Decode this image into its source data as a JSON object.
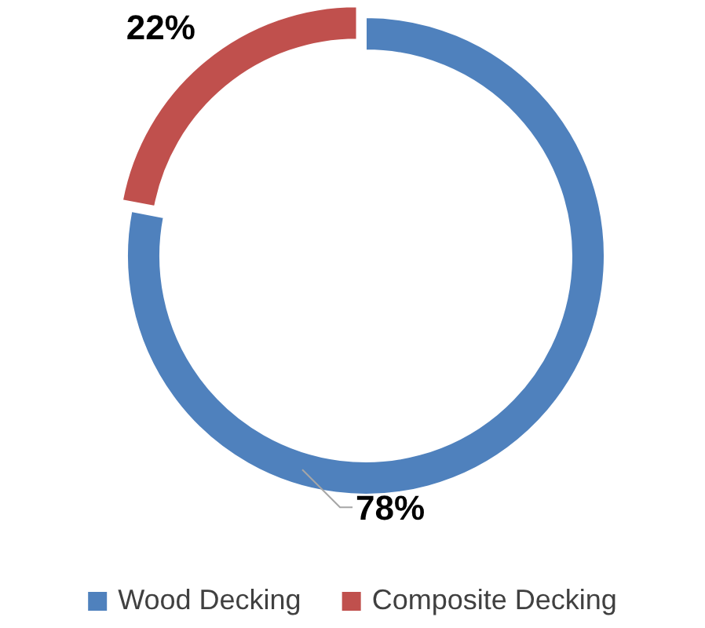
{
  "chart_data": {
    "type": "donut",
    "categories": [
      "Wood Decking",
      "Composite Decking"
    ],
    "values": [
      78,
      22
    ],
    "colors": [
      "#4f81bd",
      "#c0504d"
    ],
    "value_labels": [
      "78%",
      "22%"
    ],
    "legend": "bottom"
  }
}
